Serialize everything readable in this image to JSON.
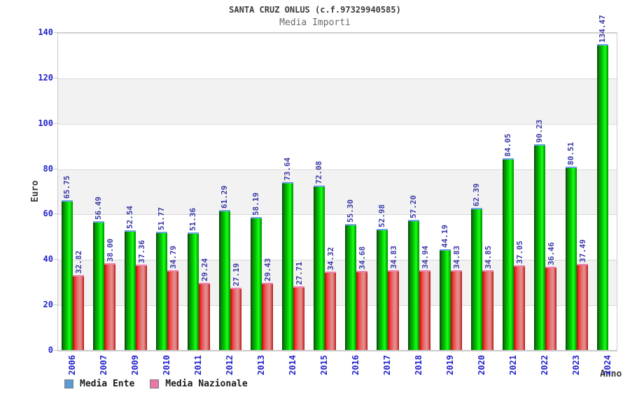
{
  "header": {
    "title": "SANTA CRUZ ONLUS (c.f.97329940585)",
    "subtitle": "Media Importi"
  },
  "axes": {
    "y_label": "Euro",
    "x_label": "Anno",
    "y_ticks": [
      0,
      20,
      40,
      60,
      80,
      100,
      120,
      140
    ],
    "y_max": 140
  },
  "legend": {
    "items": [
      {
        "label": "Media Ente",
        "color": "#5b9bd5"
      },
      {
        "label": "Media Nazionale",
        "color": "#e878a8"
      }
    ]
  },
  "colors": {
    "bar_ente": "#00cc00",
    "bar_nazionale": "#e04040",
    "cap_ente": "#74a2ee",
    "cap_nazionale": "#ef82b0",
    "tick_label": "#2222cc",
    "value_label": "#3a3aa8",
    "band_gray": "#f2f2f2"
  },
  "chart_data": {
    "type": "bar",
    "title": "SANTA CRUZ ONLUS (c.f.97329940585)",
    "subtitle": "Media Importi",
    "xlabel": "Anno",
    "ylabel": "Euro",
    "ylim": [
      0,
      140
    ],
    "grid": "horizontal, alternating gray bands every 20",
    "legend_position": "bottom-left",
    "value_labels": "rotated 90deg above bars, 2 decimals",
    "categories": [
      2006,
      2007,
      2009,
      2010,
      2011,
      2012,
      2013,
      2014,
      2015,
      2016,
      2017,
      2018,
      2019,
      2020,
      2021,
      2022,
      2023,
      2024
    ],
    "series": [
      {
        "name": "Media Ente",
        "values": [
          65.75,
          56.49,
          52.54,
          51.77,
          51.36,
          61.29,
          58.19,
          73.64,
          72.08,
          55.3,
          52.98,
          57.2,
          44.19,
          62.39,
          84.05,
          90.23,
          80.51,
          134.47
        ]
      },
      {
        "name": "Media Nazionale",
        "values": [
          32.82,
          38.0,
          37.36,
          34.79,
          29.24,
          27.19,
          29.43,
          27.71,
          34.32,
          34.68,
          34.83,
          34.94,
          34.83,
          34.85,
          37.05,
          36.46,
          37.49,
          null
        ]
      }
    ]
  }
}
